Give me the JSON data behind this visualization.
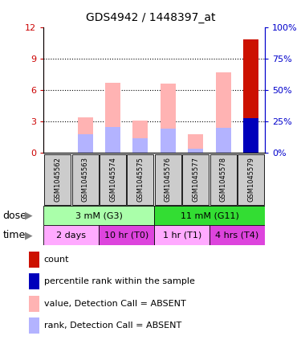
{
  "title": "GDS4942 / 1448397_at",
  "samples": [
    "GSM1045562",
    "GSM1045563",
    "GSM1045574",
    "GSM1045575",
    "GSM1045576",
    "GSM1045577",
    "GSM1045578",
    "GSM1045579"
  ],
  "pink_values": [
    0.0,
    3.4,
    6.7,
    3.1,
    6.6,
    1.8,
    7.7,
    10.8
  ],
  "blue_values": [
    0.0,
    1.8,
    2.5,
    1.4,
    2.3,
    0.4,
    2.4,
    3.3
  ],
  "ylim": [
    0,
    12
  ],
  "yticks": [
    0,
    3,
    6,
    9,
    12
  ],
  "y2lim": [
    0,
    100
  ],
  "y2ticks": [
    0,
    25,
    50,
    75,
    100
  ],
  "left_ycolor": "#cc0000",
  "right_ycolor": "#0000cc",
  "bar_width": 0.55,
  "pink_color": "#ffb3b3",
  "blue_color": "#b3b3ff",
  "red_color": "#cc1100",
  "dark_blue_color": "#0000bb",
  "dose_groups": [
    {
      "label": "3 mM (G3)",
      "start": 0,
      "end": 4,
      "color": "#aaffaa"
    },
    {
      "label": "11 mM (G11)",
      "start": 4,
      "end": 8,
      "color": "#33dd33"
    }
  ],
  "time_groups": [
    {
      "label": "2 days",
      "start": 0,
      "end": 2,
      "color": "#ffaaff"
    },
    {
      "label": "10 hr (T0)",
      "start": 2,
      "end": 4,
      "color": "#dd44dd"
    },
    {
      "label": "1 hr (T1)",
      "start": 4,
      "end": 6,
      "color": "#ffaaff"
    },
    {
      "label": "4 hrs (T4)",
      "start": 6,
      "end": 8,
      "color": "#dd44dd"
    }
  ],
  "legend_items": [
    {
      "color": "#cc1100",
      "label": "count"
    },
    {
      "color": "#0000bb",
      "label": "percentile rank within the sample"
    },
    {
      "color": "#ffb3b3",
      "label": "value, Detection Call = ABSENT"
    },
    {
      "color": "#b3b3ff",
      "label": "rank, Detection Call = ABSENT"
    }
  ],
  "sample_bg_color": "#cccccc",
  "title_fontsize": 10,
  "tick_fontsize": 8,
  "sample_fontsize": 6,
  "label_fontsize": 9,
  "legend_fontsize": 8,
  "row_fontsize": 8
}
